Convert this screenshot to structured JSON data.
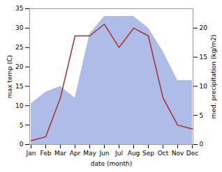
{
  "chart_data": {
    "type": "line",
    "categories": [
      "Jan",
      "Feb",
      "Mar",
      "Apr",
      "May",
      "Jun",
      "Jul",
      "Aug",
      "Sep",
      "Oct",
      "Nov",
      "Dec"
    ],
    "xlabel": "date (month)",
    "ylabel": "max temp (C)",
    "y2label": "med. precipitation (kg/m2)",
    "series": [
      {
        "type": "area",
        "axis": "y2",
        "color": "#b0bce8",
        "values": [
          7,
          9,
          10,
          8,
          19,
          22,
          22,
          22,
          20,
          16,
          11,
          11
        ]
      },
      {
        "type": "line",
        "color": "#a03030",
        "values": [
          1,
          2,
          12,
          28,
          28,
          31,
          25,
          30,
          28,
          12,
          5,
          4
        ]
      }
    ],
    "ylim": [
      0,
      35
    ],
    "yticks": [
      0,
      5,
      10,
      15,
      20,
      25,
      30,
      35
    ],
    "y2lim": [
      0,
      23.33
    ],
    "y2ticks": [
      0,
      5,
      10,
      15,
      20
    ],
    "grid": false
  }
}
